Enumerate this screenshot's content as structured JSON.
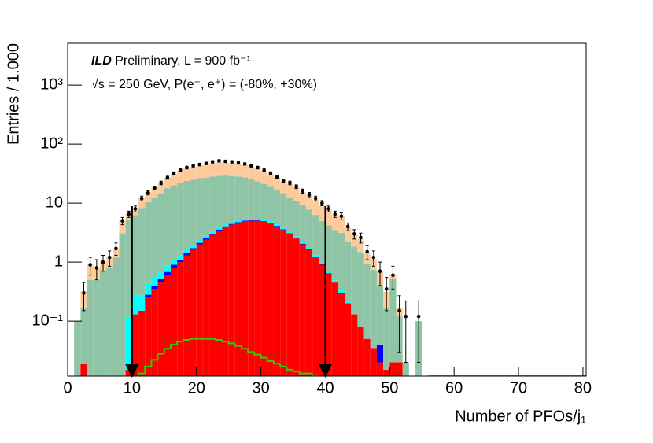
{
  "chart_data": {
    "type": "stacked_histogram",
    "experiment": "ILD",
    "annotation_line1": "Preliminary, L = 900 fb⁻¹",
    "annotation_line2": "√s = 250 GeV, P(e⁻, e⁺) = (-80%, +30%)",
    "xlabel": "Number of PFOs/j₁",
    "ylabel": "Entries / 1.000",
    "log_y": true,
    "xlim": [
      0,
      80.5
    ],
    "ylim": [
      0.0117,
      5100
    ],
    "xticks": [
      0,
      10,
      20,
      30,
      40,
      50,
      60,
      70,
      80
    ],
    "yticks": [
      {
        "value": 0.1,
        "label": "10⁻¹"
      },
      1,
      10,
      {
        "value": 100,
        "label": "10²"
      },
      {
        "value": 1000,
        "label": "10³"
      }
    ],
    "bins": [
      0,
      1,
      2,
      3,
      4,
      5,
      6,
      7,
      8,
      9,
      10,
      11,
      12,
      13,
      14,
      15,
      16,
      17,
      18,
      19,
      20,
      21,
      22,
      23,
      24,
      25,
      26,
      27,
      28,
      29,
      30,
      31,
      32,
      33,
      34,
      35,
      36,
      37,
      38,
      39,
      40,
      41,
      42,
      43,
      44,
      45,
      46,
      47,
      48,
      49,
      50,
      51,
      52,
      53,
      54,
      55,
      56
    ],
    "series": [
      {
        "color": "#ff0000",
        "values": [
          0,
          0,
          0.019,
          0,
          0,
          0,
          0,
          0,
          0,
          0.015,
          0.13,
          0.15,
          0.25,
          0.35,
          0.45,
          0.6,
          0.8,
          1.0,
          1.3,
          1.6,
          2.0,
          2.4,
          2.9,
          3.4,
          3.9,
          4.3,
          4.6,
          4.9,
          5.0,
          5.0,
          4.8,
          4.5,
          4.0,
          3.5,
          3.0,
          2.5,
          2.0,
          1.6,
          1.2,
          0.9,
          0.65,
          0.45,
          0.3,
          0.2,
          0.13,
          0.08,
          0.05,
          0.035,
          0.02,
          0.015,
          0.02,
          0.02,
          0,
          0,
          0,
          0
        ]
      },
      {
        "color": "#0000ff",
        "values": [
          0,
          0,
          0,
          0,
          0,
          0,
          0,
          0,
          0,
          0,
          0,
          0,
          0.03,
          0.05,
          0.07,
          0.08,
          0.1,
          0.1,
          0.12,
          0.12,
          0.12,
          0.12,
          0.13,
          0.13,
          0.13,
          0.13,
          0.13,
          0.13,
          0.13,
          0.13,
          0.12,
          0.1,
          0.1,
          0.08,
          0.07,
          0.06,
          0.05,
          0.04,
          0.03,
          0.02,
          0,
          0,
          0,
          0,
          0,
          0,
          0,
          0,
          0.02,
          0,
          0,
          0,
          0,
          0,
          0,
          0
        ]
      },
      {
        "color": "#00ffff",
        "values": [
          0,
          0,
          0,
          0,
          0,
          0,
          0,
          0,
          0,
          0.1,
          0.15,
          0.12,
          0.15,
          0.15,
          0.15,
          0.2,
          0.2,
          0.2,
          0.22,
          0.25,
          0.25,
          0.25,
          0.25,
          0.3,
          0.3,
          0.3,
          0.3,
          0.3,
          0.3,
          0.3,
          0.3,
          0.25,
          0.25,
          0.2,
          0.2,
          0.15,
          0.12,
          0.1,
          0.08,
          0.06,
          0.05,
          0.04,
          0.03,
          0.02,
          0,
          0,
          0,
          0,
          0,
          0,
          0,
          0,
          0,
          0,
          0,
          0
        ]
      },
      {
        "color": "#8fc4a6",
        "values": [
          0,
          0.1,
          0.15,
          0.5,
          0.5,
          0.7,
          0.8,
          1.2,
          3,
          5,
          6,
          8,
          10,
          12,
          14,
          17,
          19,
          21,
          22,
          23,
          24,
          24,
          25,
          25,
          25,
          24,
          23,
          22,
          20,
          18,
          16,
          14,
          12,
          11,
          9,
          8,
          7,
          6,
          5,
          4,
          3.5,
          3,
          2.8,
          2,
          1.7,
          1.4,
          0.9,
          0.7,
          0.35,
          0.15,
          0.5,
          0.1,
          0.02,
          0,
          0.1,
          0
        ]
      },
      {
        "color": "#fdca9c",
        "values": [
          0,
          0,
          0.15,
          0.4,
          0.3,
          0.3,
          0.4,
          0.5,
          2,
          1.5,
          2,
          4,
          5,
          6,
          7,
          9,
          11,
          13,
          15,
          16,
          17,
          18,
          19,
          20,
          19,
          19,
          18,
          17,
          16,
          15,
          14,
          12,
          11,
          9,
          9,
          8,
          6,
          6,
          5,
          4,
          3.5,
          2.8,
          2.8,
          1.6,
          1.1,
          1,
          0.5,
          0.4,
          0.3,
          0.15,
          0.1,
          0.05,
          0,
          0,
          0,
          0
        ]
      }
    ],
    "signal_line": {
      "color": "#33cc00",
      "values": [
        null,
        null,
        null,
        null,
        null,
        null,
        null,
        null,
        null,
        null,
        null,
        0.013,
        0.017,
        0.022,
        0.028,
        0.034,
        0.04,
        0.045,
        0.048,
        0.05,
        0.05,
        0.05,
        0.05,
        0.048,
        0.045,
        0.042,
        0.038,
        0.034,
        0.03,
        0.027,
        0.024,
        0.021,
        0.019,
        0.017,
        0.015,
        0.014,
        0.013,
        0.013,
        0.012,
        null,
        null,
        null,
        null,
        null,
        null,
        null,
        null,
        null,
        null,
        null,
        null,
        null,
        null,
        null,
        null,
        null
      ]
    },
    "data_points": {
      "color": "#000000",
      "values": [
        null,
        null,
        0.3,
        0.9,
        0.8,
        1.0,
        1.2,
        1.7,
        5,
        6.5,
        8,
        12,
        15,
        18,
        22,
        27,
        32,
        36,
        40,
        43,
        45,
        47,
        50,
        52,
        51,
        50,
        48,
        46,
        43,
        40,
        36,
        32,
        28,
        24,
        22,
        19,
        16,
        14,
        12,
        10,
        8,
        6.5,
        6,
        4,
        3,
        2.6,
        1.5,
        1.2,
        0.7,
        0.35,
        0.6,
        0.15,
        0.12,
        null,
        0.12,
        null
      ],
      "errors": [
        null,
        null,
        0.15,
        0.3,
        0.3,
        0.3,
        0.35,
        0.4,
        0.7,
        0.8,
        0.9,
        1.1,
        1.2,
        1.3,
        1.5,
        1.6,
        1.8,
        1.9,
        2,
        2.1,
        2.1,
        2.2,
        2.2,
        2.3,
        2.3,
        2.2,
        2.2,
        2.1,
        2.1,
        2,
        1.9,
        1.8,
        1.7,
        1.5,
        1.5,
        1.4,
        1.3,
        1.2,
        1.1,
        1,
        0.9,
        0.8,
        0.8,
        0.6,
        0.55,
        0.5,
        0.4,
        0.35,
        0.3,
        0.2,
        0.25,
        0.12,
        0.1,
        null,
        0.1,
        null
      ]
    },
    "cuts": [
      10,
      40
    ]
  }
}
